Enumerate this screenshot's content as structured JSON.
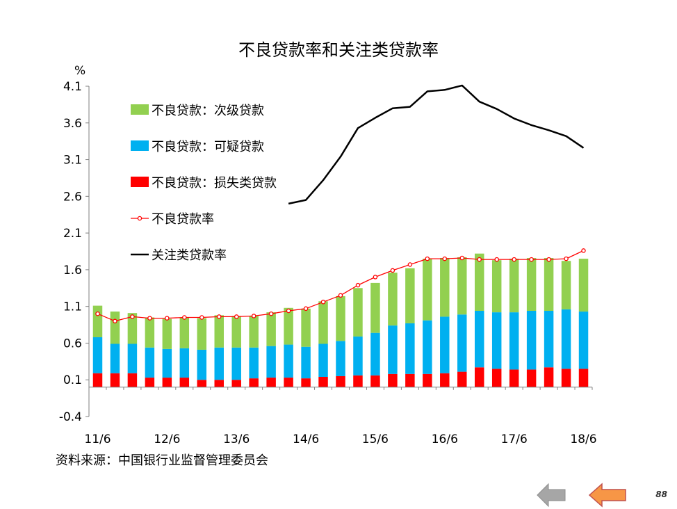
{
  "chart_data": {
    "type": "bar",
    "title": "不良贷款率和关注类贷款率",
    "y_unit": "%",
    "ylim": [
      -0.4,
      4.1
    ],
    "y_ticks": [
      "4.1",
      "3.6",
      "3.1",
      "2.6",
      "2.1",
      "1.6",
      "1.1",
      "0.6",
      "0.1",
      "-0.4"
    ],
    "bar_base": 0,
    "stacked": true,
    "grid": false,
    "legend_position": "top-left",
    "x_tick_labels": [
      "11/6",
      "12/6",
      "13/6",
      "14/6",
      "15/6",
      "16/6",
      "17/6",
      "18/6"
    ],
    "x_tick_index": [
      0,
      4,
      8,
      12,
      16,
      20,
      24,
      28
    ],
    "x": [
      "11/6",
      "11/9",
      "11/12",
      "12/3",
      "12/6",
      "12/9",
      "12/12",
      "13/3",
      "13/6",
      "13/9",
      "13/12",
      "14/3",
      "14/6",
      "14/9",
      "14/12",
      "15/3",
      "15/6",
      "15/9",
      "15/12",
      "16/3",
      "16/6",
      "16/9",
      "16/12",
      "17/3",
      "17/6",
      "17/9",
      "17/12",
      "18/3",
      "18/6"
    ],
    "series": [
      {
        "name": "不良贷款：次级贷款",
        "kind": "bar",
        "color": "#92d050",
        "values": [
          0.43,
          0.44,
          0.42,
          0.41,
          0.41,
          0.42,
          0.43,
          0.44,
          0.43,
          0.43,
          0.46,
          0.5,
          0.52,
          0.58,
          0.61,
          0.66,
          0.68,
          0.72,
          0.75,
          0.84,
          0.8,
          0.78,
          0.78,
          0.71,
          0.73,
          0.72,
          0.72,
          0.66,
          0.72
        ]
      },
      {
        "name": "不良贷款：可疑贷款",
        "kind": "bar",
        "color": "#00b0f0",
        "values": [
          0.49,
          0.4,
          0.4,
          0.41,
          0.39,
          0.4,
          0.41,
          0.44,
          0.44,
          0.42,
          0.43,
          0.45,
          0.43,
          0.45,
          0.48,
          0.53,
          0.58,
          0.66,
          0.69,
          0.73,
          0.77,
          0.78,
          0.77,
          0.77,
          0.78,
          0.8,
          0.77,
          0.81,
          0.78
        ]
      },
      {
        "name": "不良贷款：损失类贷款",
        "kind": "bar",
        "color": "#ff0000",
        "values": [
          0.19,
          0.19,
          0.19,
          0.13,
          0.13,
          0.13,
          0.1,
          0.1,
          0.1,
          0.12,
          0.13,
          0.13,
          0.12,
          0.14,
          0.15,
          0.16,
          0.16,
          0.18,
          0.18,
          0.18,
          0.19,
          0.21,
          0.27,
          0.25,
          0.24,
          0.24,
          0.27,
          0.25,
          0.25
        ]
      },
      {
        "name": "不良贷款率",
        "kind": "line-marker",
        "color": "#ff0000",
        "values": [
          1.0,
          0.9,
          0.96,
          0.94,
          0.94,
          0.95,
          0.95,
          0.96,
          0.96,
          0.97,
          1.0,
          1.04,
          1.07,
          1.16,
          1.25,
          1.39,
          1.5,
          1.59,
          1.67,
          1.75,
          1.75,
          1.76,
          1.74,
          1.74,
          1.74,
          1.74,
          1.74,
          1.75,
          1.86
        ]
      },
      {
        "name": "关注类贷款率",
        "kind": "line",
        "color": "#000000",
        "values": [
          null,
          null,
          null,
          null,
          null,
          null,
          null,
          null,
          null,
          null,
          null,
          2.5,
          2.55,
          2.82,
          3.14,
          3.53,
          3.67,
          3.8,
          3.82,
          4.03,
          4.05,
          4.11,
          3.89,
          3.79,
          3.66,
          3.57,
          3.5,
          3.42,
          3.26
        ]
      }
    ]
  },
  "source_note": "资料来源：中国银行业监督管理委员会",
  "page_number": "88",
  "nav": {
    "prev_icon": "left-arrow-icon",
    "prev_color": "#a6a6a6",
    "next_icon": "left-arrow-icon",
    "next_color": "#f79646"
  }
}
